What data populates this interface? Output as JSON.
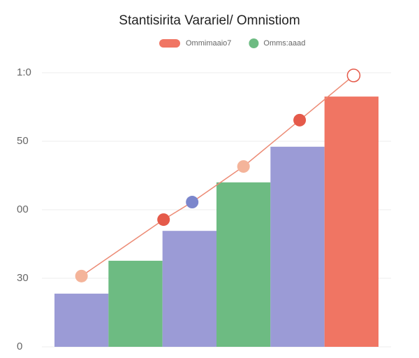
{
  "chart_data": [
    {
      "type": "bar",
      "title": "Stantisirita Varariel/ Omnistiom",
      "legend": [
        {
          "name": "Ommimaaio7",
          "color": "#f07563"
        },
        {
          "name": "Omms:aaad",
          "color": "#6dbb82"
        }
      ],
      "categories": [
        null,
        null,
        null,
        null,
        null,
        null
      ],
      "values": [
        19.4,
        31.4,
        42.3,
        60,
        73,
        91.3
      ],
      "colors": [
        "#9b9bd6",
        "#6dbb82",
        "#9b9bd6",
        "#6dbb82",
        "#9b9bd6",
        "#f07563"
      ],
      "ylim": [
        0,
        100
      ],
      "yticks": [
        0,
        {
          "value": 25,
          "label": "30"
        },
        {
          "value": 50,
          "label": "00"
        },
        {
          "value": 75,
          "label": "50"
        },
        {
          "value": 100,
          "label": "1:0"
        }
      ],
      "grid": true
    },
    {
      "type": "line",
      "xlim": [
        0,
        6
      ],
      "ylim": [
        0,
        100
      ],
      "line_color": "#ec8a74",
      "x": [
        0.5,
        2.02,
        2.55,
        3.5,
        4.54,
        5.54
      ],
      "values": [
        25.8,
        46.4,
        52.8,
        65.8,
        82.7,
        99
      ],
      "colors": [
        "#f4b49a",
        "#e55a4a",
        "#7b86cc",
        "#f4b49a",
        "#e55a4a",
        "#ffffff"
      ]
    }
  ]
}
